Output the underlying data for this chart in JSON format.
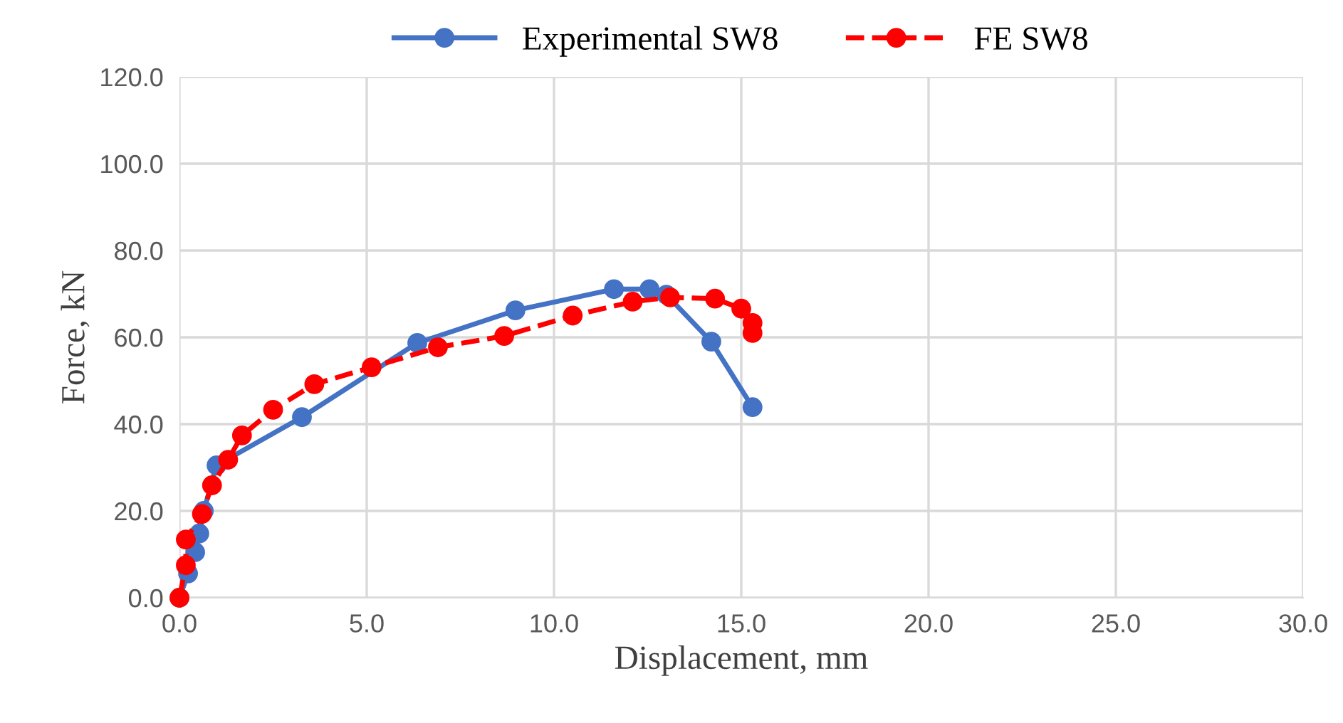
{
  "chart_data": {
    "type": "line",
    "xlabel": "Displacement, mm",
    "ylabel": "Force, kN",
    "xlim": [
      0,
      30
    ],
    "ylim": [
      0,
      120
    ],
    "xticks": [
      {
        "value": 0,
        "label": "0.0"
      },
      {
        "value": 5,
        "label": "5.0"
      },
      {
        "value": 10,
        "label": "10.0"
      },
      {
        "value": 15,
        "label": "15.0"
      },
      {
        "value": 20,
        "label": "20.0"
      },
      {
        "value": 25,
        "label": "25.0"
      },
      {
        "value": 30,
        "label": "30.0"
      }
    ],
    "yticks": [
      {
        "value": 0,
        "label": "0.0"
      },
      {
        "value": 20,
        "label": "20.0"
      },
      {
        "value": 40,
        "label": "40.0"
      },
      {
        "value": 60,
        "label": "60.0"
      },
      {
        "value": 80,
        "label": "80.0"
      },
      {
        "value": 100,
        "label": "100.0"
      },
      {
        "value": 120,
        "label": "120.0"
      }
    ],
    "grid": true,
    "legend": "top",
    "marker": "circle",
    "series": [
      {
        "name": "Experimental SW8",
        "color": "#4472c4",
        "line_style": "solid",
        "x": [
          0,
          0.23,
          0.42,
          0.53,
          0.65,
          0.99,
          3.27,
          6.35,
          8.97,
          11.6,
          12.55,
          13.0,
          14.2,
          15.3
        ],
        "values": [
          0,
          5.6,
          10.5,
          14.8,
          20,
          30.5,
          41.6,
          58.7,
          66.2,
          71.1,
          71.1,
          69.8,
          59,
          43.9
        ]
      },
      {
        "name": "FE SW8",
        "color": "#ff0000",
        "line_style": "dashed",
        "x": [
          0,
          0.17,
          0.17,
          0.6,
          0.87,
          1.3,
          1.67,
          2.5,
          3.6,
          5.13,
          6.9,
          8.67,
          10.5,
          12.1,
          13.1,
          14.3,
          15.0,
          15.3,
          15.3
        ],
        "values": [
          0,
          7.5,
          13.4,
          19.3,
          25.9,
          31.8,
          37.4,
          43.3,
          49.2,
          53.1,
          57.7,
          60.3,
          65,
          68.2,
          69.2,
          68.9,
          66.6,
          63.3,
          61
        ]
      }
    ]
  }
}
